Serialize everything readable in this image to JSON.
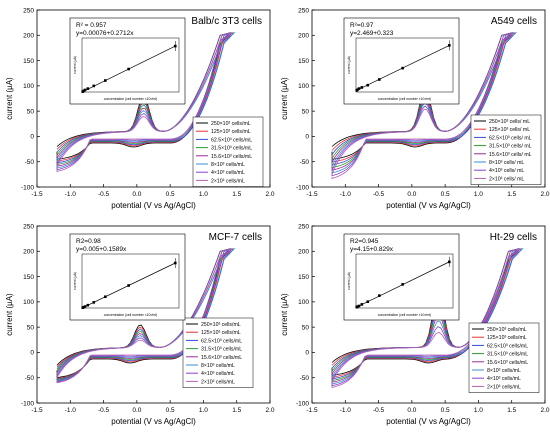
{
  "chart_data": [
    {
      "type": "line",
      "title": "Balb/c 3T3 cells",
      "xlabel": "potential (V vs Ag/AgCl)",
      "ylabel": "current (µA)",
      "xlim": [
        -1.5,
        2.0
      ],
      "ylim": [
        -100,
        250
      ],
      "xticks": [
        "-1.5",
        "-1.0",
        "-0.5",
        "0.0",
        "0.5",
        "1.0",
        "1.5",
        "2.0"
      ],
      "yticks": [
        "-100",
        "-50",
        "0",
        "50",
        "100",
        "150",
        "200",
        "250"
      ],
      "legend_position": "right",
      "peak": {
        "x": 0.1,
        "y_max": 80,
        "y_min": 40
      },
      "start": {
        "y_max": -30,
        "y_min": -65
      },
      "vertex": {
        "x": 1.25,
        "y": 205
      },
      "series": [
        {
          "name": "250×10³ cells/mL",
          "color": "#000000"
        },
        {
          "name": "125×10³ cells/mL",
          "color": "#e8312f"
        },
        {
          "name": "62.5×10³ cells/mL",
          "color": "#2d4fd8"
        },
        {
          "name": "31.5×10³ cells/mL",
          "color": "#2a9a2a"
        },
        {
          "name": "15.6×10³ cells/mL",
          "color": "#9a2a9a"
        },
        {
          "name": "8×10³ cells/mL",
          "color": "#3a8fd0"
        },
        {
          "name": "4×10³ cells/mL",
          "color": "#8a40d0"
        },
        {
          "name": "2×10³ cells/mL",
          "color": "#b060b0"
        }
      ],
      "inset": {
        "r2": "R² = 0.957",
        "equation": "y=0.00076+0.2712x",
        "xlabel": "concentration (cell number ×10³/ml)",
        "ylabel": "current (µA)",
        "x": [
          2,
          4,
          8,
          15.6,
          31.5,
          62.5,
          125,
          250
        ],
        "y": [
          0.5,
          1.5,
          3,
          5,
          9,
          17,
          34,
          68
        ],
        "xmax": 260,
        "ymax": 80
      }
    },
    {
      "type": "line",
      "title": "A549 cells",
      "xlabel": "potential (V vs Ag/AgCl)",
      "ylabel": "current (µA)",
      "xlim": [
        -1.5,
        2.0
      ],
      "ylim": [
        -100,
        250
      ],
      "xticks": [
        "-1.5",
        "-1.0",
        "-0.5",
        "0.0",
        "0.5",
        "1.0",
        "1.5",
        "2.0"
      ],
      "yticks": [
        "-100",
        "-50",
        "0",
        "50",
        "100",
        "150",
        "200",
        "250"
      ],
      "legend_position": "right",
      "peak": {
        "x": 0.2,
        "y_max": 95,
        "y_min": 55
      },
      "start": {
        "y_max": -30,
        "y_min": -80
      },
      "vertex": {
        "x": 1.35,
        "y": 205
      },
      "series": [
        {
          "name": "250×10³ cells/ mL",
          "color": "#000000"
        },
        {
          "name": "125×10³ cells/ mL",
          "color": "#e8312f"
        },
        {
          "name": "62.5×10³ cells/ mL",
          "color": "#2d4fd8"
        },
        {
          "name": "31.5×10³ cells/ mL",
          "color": "#2a9a2a"
        },
        {
          "name": "15.6×10³ cells/ mL",
          "color": "#9a2a9a"
        },
        {
          "name": "8×10³ cells/ mL",
          "color": "#3a8fd0"
        },
        {
          "name": "4×10³ cells/ mL",
          "color": "#8a40d0"
        },
        {
          "name": "2×10³ cells/ mL",
          "color": "#b060b0"
        }
      ],
      "inset": {
        "r2": "R²=0.97",
        "equation": "y=2.469+0.323",
        "xlabel": "concentration (cell number ×10³/ml)",
        "ylabel": "current (µA)",
        "x": [
          2,
          4,
          8,
          15.6,
          31.5,
          62.5,
          125,
          250
        ],
        "y": [
          3,
          4,
          6,
          8,
          12,
          22,
          42,
          82
        ],
        "xmax": 260,
        "ymax": 95
      }
    },
    {
      "type": "line",
      "title": "MCF-7 cells",
      "xlabel": "potential (V vs Ag/AgCl)",
      "ylabel": "current (µA)",
      "xlim": [
        -1.5,
        2.0
      ],
      "ylim": [
        -100,
        250
      ],
      "xticks": [
        "-1.5",
        "-1.0",
        "-0.5",
        "0.0",
        "0.5",
        "1.0",
        "1.5",
        "2.0"
      ],
      "yticks": [
        "-100",
        "-50",
        "0",
        "50",
        "100",
        "150",
        "200",
        "250"
      ],
      "legend_position": "right",
      "peak": {
        "x": 0.05,
        "y_max": 55,
        "y_min": 25
      },
      "start": {
        "y_max": -35,
        "y_min": -55
      },
      "vertex": {
        "x": 1.25,
        "y": 205
      },
      "series": [
        {
          "name": "250×10³ cells/mL",
          "color": "#000000"
        },
        {
          "name": "125×10³ cells/mL",
          "color": "#e8312f"
        },
        {
          "name": "62.5×10³ cells/mL",
          "color": "#2d4fd8"
        },
        {
          "name": "31.5×10³ cells/mL",
          "color": "#2a9a2a"
        },
        {
          "name": "15.6×10³ cells/mL",
          "color": "#9a2a9a"
        },
        {
          "name": "8×10³ cells/mL",
          "color": "#3a8fd0"
        },
        {
          "name": "4×10³ cells/mL",
          "color": "#8a40d0"
        },
        {
          "name": "2×10³ cells/mL",
          "color": "#b060b0"
        }
      ],
      "inset": {
        "r2": "R2=0.98",
        "equation": "y=0.005+0.1589x",
        "xlabel": "concentration (cell number ×10³/ml)",
        "ylabel": "current (µA)",
        "x": [
          2,
          4,
          8,
          15.6,
          31.5,
          62.5,
          125,
          250
        ],
        "y": [
          0.3,
          0.6,
          1.3,
          2.5,
          5,
          10,
          20,
          40
        ],
        "xmax": 260,
        "ymax": 48
      }
    },
    {
      "type": "line",
      "title": "Ht-29 cells",
      "xlabel": "potential (V vs Ag/AgCl)",
      "ylabel": "current (µA)",
      "xlim": [
        -1.5,
        2.0
      ],
      "ylim": [
        -100,
        250
      ],
      "xticks": [
        "-1.5",
        "-1.0",
        "-0.5",
        "0.0",
        "0.5",
        "1.0",
        "1.5",
        "2.0"
      ],
      "yticks": [
        "-100",
        "-50",
        "0",
        "50",
        "100",
        "150",
        "200",
        "250"
      ],
      "legend_position": "right",
      "peak": {
        "x": 0.4,
        "y_max": 120,
        "y_min": 40
      },
      "start": {
        "y_max": -30,
        "y_min": -65
      },
      "vertex": {
        "x": 1.45,
        "y": 205
      },
      "series": [
        {
          "name": "250×10³ cells/mL",
          "color": "#000000"
        },
        {
          "name": "125×10³ cells/mL",
          "color": "#e8312f"
        },
        {
          "name": "62.5×10³ cells/mL",
          "color": "#2d4fd8"
        },
        {
          "name": "31.5×10³ cells/mL",
          "color": "#2a9a2a"
        },
        {
          "name": "15.6×10³ cells/mL",
          "color": "#9a2a9a"
        },
        {
          "name": "8×10³ cells/mL",
          "color": "#3a8fd0"
        },
        {
          "name": "4×10³ cells/mL",
          "color": "#8a40d0"
        },
        {
          "name": "2×10³ cells/mL",
          "color": "#b060b0"
        }
      ],
      "inset": {
        "r2": "R2=0.945",
        "equation": "y=4.15+0.829x",
        "xlabel": "concentration (cell number ×10³/ml)",
        "ylabel": "current (µA)",
        "x": [
          2,
          4,
          8,
          15.6,
          31.5,
          62.5,
          125,
          250
        ],
        "y": [
          4,
          6,
          9,
          16,
          28,
          55,
          105,
          205
        ],
        "xmax": 260,
        "ymax": 240
      }
    }
  ]
}
